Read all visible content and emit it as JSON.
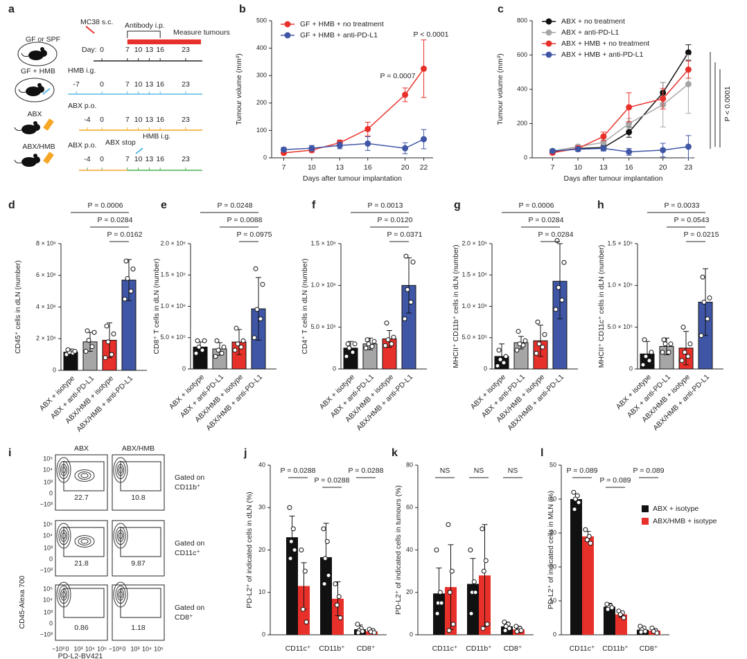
{
  "schematic": {
    "label": "a",
    "injection": "MC38 s.c.",
    "antibody": "Antibody i.p.",
    "measure": "Measure tumours",
    "day_label": "Day:",
    "groups": [
      {
        "name": "GF or SPF",
        "days": [
          0,
          7,
          10,
          13,
          16,
          23
        ]
      },
      {
        "name": "GF + HMB",
        "treatment": "HMB i.g.",
        "days": [
          -7,
          0,
          7,
          10,
          13,
          16,
          23
        ]
      },
      {
        "name": "ABX",
        "treatment": "ABX p.o.",
        "days": [
          -4,
          0,
          7,
          10,
          13,
          16,
          23
        ]
      },
      {
        "name": "ABX/HMB",
        "treatment": "ABX p.o.",
        "stop": "ABX stop",
        "second_treatment": "HMB i.g.",
        "days": [
          -4,
          0,
          7,
          10,
          13,
          16,
          23
        ]
      }
    ]
  },
  "flow": {
    "label": "i",
    "columns": [
      "ABX",
      "ABX/HMB"
    ],
    "rows": [
      {
        "gate": [
          "Gated on",
          "CD11b⁺"
        ],
        "percentages": [
          22.7,
          10.8
        ]
      },
      {
        "gate": [
          "Gated on",
          "CD11c⁺"
        ],
        "percentages": [
          21.8,
          9.87
        ]
      },
      {
        "gate": [
          "Gated on",
          "CD8⁺"
        ],
        "percentages": [
          0.86,
          1.18
        ]
      }
    ],
    "y_label": "CD45-Alexa 700",
    "x_label": "PD-L2-BV421",
    "y_ticks": [
      "10⁵",
      "10⁴",
      "10³",
      "0",
      "−10³"
    ],
    "x_ticks": [
      "−10³",
      "0",
      "10³",
      "10⁴",
      "10⁵"
    ]
  },
  "chart_data": [
    {
      "type": "line",
      "panel": "b",
      "xlabel": "Days after tumour implantation",
      "ylabel": "Tumour volume (mm³)",
      "x": [
        7,
        10,
        13,
        16,
        20,
        22
      ],
      "xlim": [
        5.7,
        23
      ],
      "xticks": [
        7,
        10,
        13,
        16,
        20,
        22
      ],
      "ylim": [
        0,
        500
      ],
      "yticks": [
        0,
        100,
        200,
        300,
        400,
        500
      ],
      "series": [
        {
          "name": "GF + HMB + no treatment",
          "color": "#e8302a",
          "values": [
            18,
            28,
            55,
            105,
            230,
            325
          ],
          "errors": [
            5,
            8,
            10,
            25,
            25,
            105
          ]
        },
        {
          "name": "GF + HMB + anti-PD-L1",
          "color": "#3f56a6",
          "values": [
            30,
            35,
            45,
            52,
            35,
            68
          ],
          "errors": [
            8,
            10,
            12,
            25,
            20,
            35
          ]
        }
      ],
      "annotations": [
        "P = 0.0007",
        "P < 0.0001"
      ]
    },
    {
      "type": "line",
      "panel": "c",
      "xlabel": "Days after tumour implantation",
      "ylabel": "Tumour volume (mm³)",
      "x": [
        7,
        10,
        13,
        16,
        20,
        23
      ],
      "xlim": [
        4.6,
        23.7
      ],
      "xticks": [
        7,
        10,
        13,
        16,
        20,
        23
      ],
      "ylim": [
        0,
        800
      ],
      "yticks": [
        0,
        200,
        400,
        600,
        800
      ],
      "series": [
        {
          "name": "ABX + no treatment",
          "color": "#111111",
          "values": [
            35,
            55,
            60,
            150,
            380,
            615
          ],
          "errors": [
            10,
            10,
            15,
            30,
            60,
            45
          ]
        },
        {
          "name": "ABX + anti-PD-L1",
          "color": "#a6a6a6",
          "values": [
            40,
            65,
            90,
            200,
            310,
            430
          ],
          "errors": [
            10,
            12,
            20,
            30,
            130,
            170
          ]
        },
        {
          "name": "ABX + HMB + no treatment",
          "color": "#e8302a",
          "values": [
            30,
            55,
            125,
            295,
            345,
            515
          ],
          "errors": [
            10,
            15,
            25,
            85,
            60,
            50
          ]
        },
        {
          "name": "ABX + HMB + anti-PD-L1",
          "color": "#3f56a6",
          "values": [
            40,
            50,
            55,
            35,
            45,
            65
          ],
          "errors": [
            10,
            12,
            15,
            20,
            40,
            65
          ]
        }
      ],
      "annotations": [
        "P < 0.0001"
      ]
    },
    {
      "type": "bar",
      "panel": "d",
      "ylabel": "CD45⁺ cells in dLN (number)",
      "categories": [
        "ABX + isotype",
        "ABX + anti-PD-L1",
        "ABX/HMB + isotype",
        "ABX/HMB + anti-PD-L1"
      ],
      "colors": [
        "#111111",
        "#a6a6a6",
        "#e8302a",
        "#3f56a6"
      ],
      "values": [
        1150000,
        1800000,
        1900000,
        5700000
      ],
      "errors": [
        200000,
        600000,
        1100000,
        1300000
      ],
      "points": [
        [
          1000000,
          1100000,
          1150000,
          1200000,
          1300000
        ],
        [
          1200000,
          1500000,
          1900000,
          2400000,
          2500000
        ],
        [
          800000,
          1000000,
          1800000,
          2300000,
          2800000
        ],
        [
          4500000,
          5000000,
          5800000,
          6400000,
          6900000
        ]
      ],
      "ylim": [
        0,
        8000000
      ],
      "yticks": [
        0,
        {
          "value": 2000000,
          "label": "2 × 10⁶"
        },
        {
          "value": 4000000,
          "label": "4 × 10⁶"
        },
        {
          "value": 6000000,
          "label": "6 × 10⁶"
        },
        {
          "value": 8000000,
          "label": "8 × 10⁶"
        }
      ],
      "annotations": [
        "P = 0.0006",
        "P = 0.0284",
        "P = 0.0162"
      ]
    },
    {
      "type": "bar",
      "panel": "e",
      "ylabel": "CD8⁺ T cells in dLN (number)",
      "categories": [
        "ABX + isotype",
        "ABX + anti-PD-L1",
        "ABX/HMB + isotype",
        "ABX/HMB + anti-PD-L1"
      ],
      "colors": [
        "#111111",
        "#a6a6a6",
        "#e8302a",
        "#3f56a6"
      ],
      "values": [
        350000,
        320000,
        430000,
        960000
      ],
      "errors": [
        80000,
        100000,
        200000,
        500000
      ],
      "points": [
        [
          250000,
          300000,
          350000,
          450000,
          450000
        ],
        [
          200000,
          250000,
          300000,
          350000,
          450000
        ],
        [
          300000,
          350000,
          400000,
          450000,
          650000
        ],
        [
          500000,
          800000,
          950000,
          1350000,
          1600000
        ]
      ],
      "ylim": [
        0,
        2000000
      ],
      "yticks": [
        0,
        {
          "value": 500000,
          "label": "5.0 × 10⁵"
        },
        {
          "value": 1000000,
          "label": "1.0 × 10⁶"
        },
        {
          "value": 1500000,
          "label": "1.5 × 10⁶"
        },
        {
          "value": 2000000,
          "label": "2.0 × 10⁶"
        }
      ],
      "annotations": [
        "P = 0.0248",
        "P = 0.0088",
        "P = 0.0975"
      ]
    },
    {
      "type": "bar",
      "panel": "f",
      "ylabel": "CD4⁺ T cells in dLN (number)",
      "categories": [
        "ABX + isotype",
        "ABX + anti-PD-L1",
        "ABX/HMB + isotype",
        "ABX/HMB + anti-PD-L1"
      ],
      "colors": [
        "#111111",
        "#a6a6a6",
        "#e8302a",
        "#3f56a6"
      ],
      "values": [
        250000,
        300000,
        360000,
        1000000
      ],
      "errors": [
        80000,
        70000,
        100000,
        330000
      ],
      "points": [
        [
          150000,
          200000,
          250000,
          300000,
          300000
        ],
        [
          250000,
          270000,
          300000,
          330000,
          350000
        ],
        [
          280000,
          300000,
          350000,
          380000,
          550000
        ],
        [
          600000,
          800000,
          950000,
          1280000,
          1350000
        ]
      ],
      "ylim": [
        0,
        1500000
      ],
      "yticks": [
        0,
        {
          "value": 500000,
          "label": "5.0 × 10⁵"
        },
        {
          "value": 1000000,
          "label": "1.0 × 10⁶"
        },
        {
          "value": 1500000,
          "label": "1.5 × 10⁶"
        }
      ],
      "annotations": [
        "P = 0.0013",
        "P = 0.0120",
        "P = 0.0371"
      ]
    },
    {
      "type": "bar",
      "panel": "g",
      "ylabel": "MHCII⁺ CD11b⁺ cells in dLN (number)",
      "categories": [
        "ABX + isotype",
        "ABX + anti-PD-L1",
        "ABX/HMB + isotype",
        "ABX/HMB + anti-PD-L1"
      ],
      "colors": [
        "#111111",
        "#a6a6a6",
        "#e8302a",
        "#3f56a6"
      ],
      "values": [
        200000,
        420000,
        450000,
        1400000
      ],
      "errors": [
        200000,
        100000,
        250000,
        600000
      ],
      "points": [
        [
          50000,
          100000,
          150000,
          200000,
          300000
        ],
        [
          300000,
          380000,
          400000,
          450000,
          600000
        ],
        [
          250000,
          350000,
          400000,
          550000,
          750000
        ],
        [
          950000,
          1100000,
          1300000,
          1700000,
          2050000
        ]
      ],
      "ylim": [
        0,
        2000000
      ],
      "yticks": [
        0,
        {
          "value": 500000,
          "label": "5.0 × 10⁵"
        },
        {
          "value": 1000000,
          "label": "1.0 × 10⁶"
        },
        {
          "value": 1500000,
          "label": "1.5 × 10⁶"
        },
        {
          "value": 2000000,
          "label": "2.0 × 10⁶"
        }
      ],
      "annotations": [
        "P = 0.0006",
        "P = 0.0284",
        "P = 0.0284"
      ]
    },
    {
      "type": "bar",
      "panel": "h",
      "ylabel": "MHCII⁺ CD11c⁺ cells in dLN (number)",
      "categories": [
        "ABX + isotype",
        "ABX + anti-PD-L1",
        "ABX/HMB + isotype",
        "ABX/HMB + anti-PD-L1"
      ],
      "colors": [
        "#111111",
        "#a6a6a6",
        "#e8302a",
        "#3f56a6"
      ],
      "values": [
        180000,
        270000,
        250000,
        800000
      ],
      "errors": [
        150000,
        100000,
        200000,
        400000
      ],
      "points": [
        [
          50000,
          100000,
          150000,
          200000,
          350000
        ],
        [
          200000,
          200000,
          300000,
          300000,
          350000
        ],
        [
          100000,
          150000,
          200000,
          300000,
          500000
        ],
        [
          400000,
          600000,
          800000,
          850000,
          1100000
        ]
      ],
      "ylim": [
        0,
        1500000
      ],
      "yticks": [
        0,
        {
          "value": 500000,
          "label": "5.0 × 10⁵"
        },
        {
          "value": 1000000,
          "label": "1.0 × 10⁶"
        },
        {
          "value": 1500000,
          "label": "1.5 × 10⁶"
        }
      ],
      "annotations": [
        "P = 0.0033",
        "P = 0.0543",
        "P = 0.0215"
      ]
    },
    {
      "type": "grouped_bar",
      "panel": "j",
      "ylabel": "PD-L2⁺ of indicated cells in dLN (%)",
      "categories": [
        "CD11c⁺",
        "CD11b⁺",
        "CD8⁺"
      ],
      "ylim": [
        0,
        40
      ],
      "yticks": [
        0,
        10,
        20,
        30,
        40
      ],
      "series": [
        {
          "color": "#111111",
          "values": [
            23,
            18.3,
            1.3
          ],
          "errors": [
            5,
            8,
            1
          ],
          "points": [
            [
              30,
              25,
              22,
              20,
              18
            ],
            [
              25,
              22,
              18,
              14,
              12
            ],
            [
              2.5,
              1.5,
              1,
              0.8,
              0.5
            ]
          ]
        },
        {
          "color": "#e8302a",
          "values": [
            11.5,
            8.5,
            0.8
          ],
          "errors": [
            5.5,
            4,
            0.5
          ],
          "points": [
            [
              20,
              15,
              6,
              3
            ],
            [
              12,
              9,
              7,
              4
            ],
            [
              1.3,
              1,
              0.7,
              0.5
            ]
          ]
        }
      ],
      "annotations": [
        "P = 0.0288",
        "P = 0.0288",
        "P = 0.0288"
      ]
    },
    {
      "type": "grouped_bar",
      "panel": "k",
      "ylabel": "PD-L2⁺ of indicated cells in tumours (%)",
      "categories": [
        "CD11c⁺",
        "CD11b⁺",
        "CD8⁺"
      ],
      "ylim": [
        0,
        80
      ],
      "yticks": [
        0,
        20,
        40,
        60,
        80
      ],
      "series": [
        {
          "color": "#111111",
          "values": [
            19.5,
            24,
            4
          ],
          "errors": [
            12,
            12,
            2
          ],
          "points": [
            [
              40,
              20,
              15,
              15,
              10
            ],
            [
              40,
              25,
              20,
              20,
              10
            ],
            [
              6,
              5,
              4,
              3,
              2
            ]
          ]
        },
        {
          "color": "#e8302a",
          "values": [
            22.5,
            28,
            2.5
          ],
          "errors": [
            20,
            24,
            1.5
          ],
          "points": [
            [
              52,
              30,
              20,
              5,
              2
            ],
            [
              50,
              35,
              30,
              5,
              3
            ],
            [
              4,
              3,
              2,
              2,
              1.5
            ]
          ]
        }
      ],
      "annotations": [
        "NS",
        "NS",
        "NS"
      ]
    },
    {
      "type": "grouped_bar",
      "panel": "l",
      "ylabel": "PD-L2⁺ of indicated cells in MLN (%)",
      "categories": [
        "CD11c⁺",
        "CD11b⁺",
        "CD8⁺"
      ],
      "ylim": [
        0,
        50
      ],
      "yticks": [
        0,
        10,
        20,
        30,
        40,
        50
      ],
      "series": [
        {
          "name": "ABX + isotype",
          "color": "#111111",
          "values": [
            40,
            8.3,
            1.5
          ],
          "errors": [
            1.5,
            1,
            0.8
          ],
          "points": [
            [
              42,
              41,
              40,
              39,
              37
            ],
            [
              9,
              8.5,
              8,
              8,
              7.5
            ],
            [
              2.5,
              2,
              1.5,
              1,
              0.8
            ]
          ]
        },
        {
          "name": "ABX/HMB + isotype",
          "color": "#e8302a",
          "values": [
            29,
            6,
            1.2
          ],
          "errors": [
            1.5,
            0.8,
            0.6
          ],
          "points": [
            [
              31,
              29,
              28,
              27
            ],
            [
              7,
              6.5,
              6,
              5
            ],
            [
              2,
              1.2,
              1,
              0.5
            ]
          ]
        }
      ],
      "annotations": [
        "P = 0.089",
        "P = 0.089",
        "P = 0.089"
      ]
    }
  ]
}
